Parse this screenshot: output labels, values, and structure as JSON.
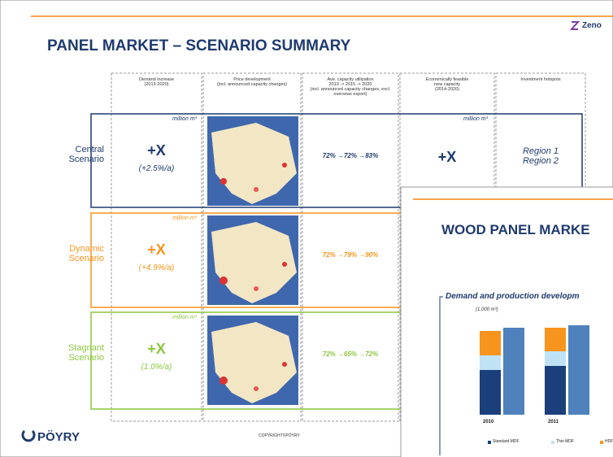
{
  "logo": "Zeno",
  "header": {
    "title": "PANEL MARKET – SCENARIO SUMMARY"
  },
  "columns": [
    "Demand increase\n(2013-2020)",
    "Price development\n(incl. announced capacity changes)",
    "Ave. capacity utilization\n2013 -> 2015 -> 2020\n(incl. announced capacity changes, excl. overseas export)",
    "Economically feasible\nnew capacity\n(2014-2020)",
    "Investment hotspots"
  ],
  "rows": [
    {
      "label": "Central\nScenario",
      "unit": "million m³",
      "demand": "+X",
      "rate": "(+2.5%/a)",
      "utilization": "72% →72% →83%",
      "capacity_unit": "million m³",
      "capacity": "+X",
      "hotspots": "Region 1\nRegion 2"
    },
    {
      "label": "Dynamic\nScenario",
      "unit": "million m³",
      "demand": "+X",
      "rate": "(+4.9%/a)",
      "utilization": "72% →79% →90%"
    },
    {
      "label": "Stagnant\nScenario",
      "unit": "million m³",
      "demand": "+X",
      "rate": "(1.0%/a)",
      "utilization": "72% →65% →72%"
    }
  ],
  "footer": {
    "brand": "PÖYRY",
    "copyright": "COPYRIGHT©PÖYRY"
  },
  "overlay": {
    "title": "WOOD PANEL MARKE",
    "chart_title": "Demand and production developm",
    "unit": "(1,000 m³)",
    "chart": {
      "type": "bar",
      "categories": [
        "2010",
        "2011"
      ],
      "ylim": [
        0,
        115
      ],
      "series": [
        {
          "name": "Standard MDF",
          "color": "#1b3f7a",
          "values": [
            55,
            60
          ]
        },
        {
          "name": "Thin MDF",
          "color": "#bfe3f5",
          "values": [
            18,
            18
          ]
        },
        {
          "name": "HDF",
          "color": "#f7941d",
          "values": [
            30,
            29
          ]
        },
        {
          "color": "#4f81bd",
          "values": [
            107,
            110
          ]
        }
      ]
    }
  }
}
